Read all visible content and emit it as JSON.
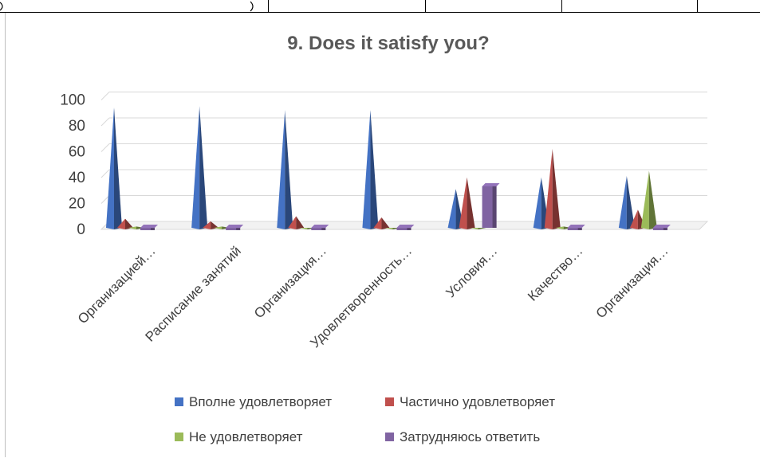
{
  "chart_data": {
    "type": "bar",
    "title": "9. Does it satisfy you?",
    "categories": [
      "Организацией…",
      "Расписание занятий",
      "Организация…",
      "Удовлетворенность…",
      "Условия…",
      "Качество…",
      "Организация…"
    ],
    "series": [
      {
        "name": "Вполне удовлетворяет",
        "color": "#4472C4",
        "values": [
          93,
          94,
          91,
          91,
          30,
          39,
          40
        ]
      },
      {
        "name": "Частично удовлетворяет",
        "color": "#C0504D",
        "values": [
          7,
          5,
          9,
          8,
          39,
          61,
          14
        ]
      },
      {
        "name": "Не удовлетворяет",
        "color": "#9BBB59",
        "values": [
          1,
          1,
          0,
          0,
          0,
          1,
          44
        ]
      },
      {
        "name": "Затрудняюсь ответить",
        "color": "#8064A2",
        "values": [
          0,
          0,
          0,
          0,
          32,
          0,
          0
        ]
      }
    ],
    "ylim": [
      0,
      100
    ],
    "yticks": [
      0,
      20,
      40,
      60,
      80,
      100
    ],
    "grid": true,
    "legend": "bottom"
  }
}
